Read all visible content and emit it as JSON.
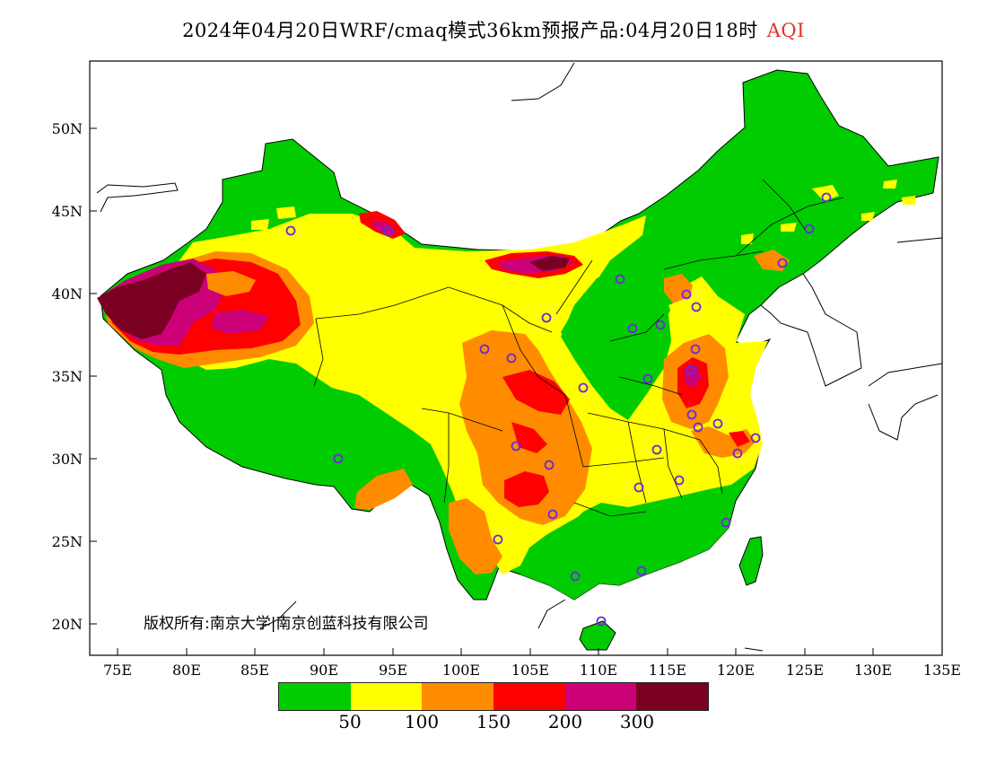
{
  "title": {
    "main": "2024年04月20日WRF/cmaq模式36km预报产品:04月20日18时",
    "variable": "AQI"
  },
  "axes": {
    "lon_labels": [
      "75E",
      "80E",
      "85E",
      "90E",
      "95E",
      "100E",
      "105E",
      "110E",
      "115E",
      "120E",
      "125E",
      "130E",
      "135E"
    ],
    "lat_labels": [
      "50N",
      "45N",
      "40N",
      "35N",
      "30N",
      "25N",
      "20N"
    ]
  },
  "legend": {
    "colors": [
      "#00cc00",
      "#ffff00",
      "#ff8c00",
      "#ff0000",
      "#cc0077",
      "#7a0022"
    ],
    "ticks": [
      "50",
      "100",
      "150",
      "200",
      "300"
    ]
  },
  "copyright": "版权所有:南京大学|南京创蓝科技有限公司",
  "colors": {
    "good": "#00cc00",
    "moderate": "#ffff00",
    "usg": "#ff8c00",
    "unhealthy": "#ff0000",
    "very_unhealthy": "#cc0077",
    "hazardous": "#7a0022",
    "station_ring": "#6a2bd9"
  },
  "map_layers": [
    "china-aqi-field",
    "station-markers",
    "country-outlines",
    "province-boundaries"
  ]
}
